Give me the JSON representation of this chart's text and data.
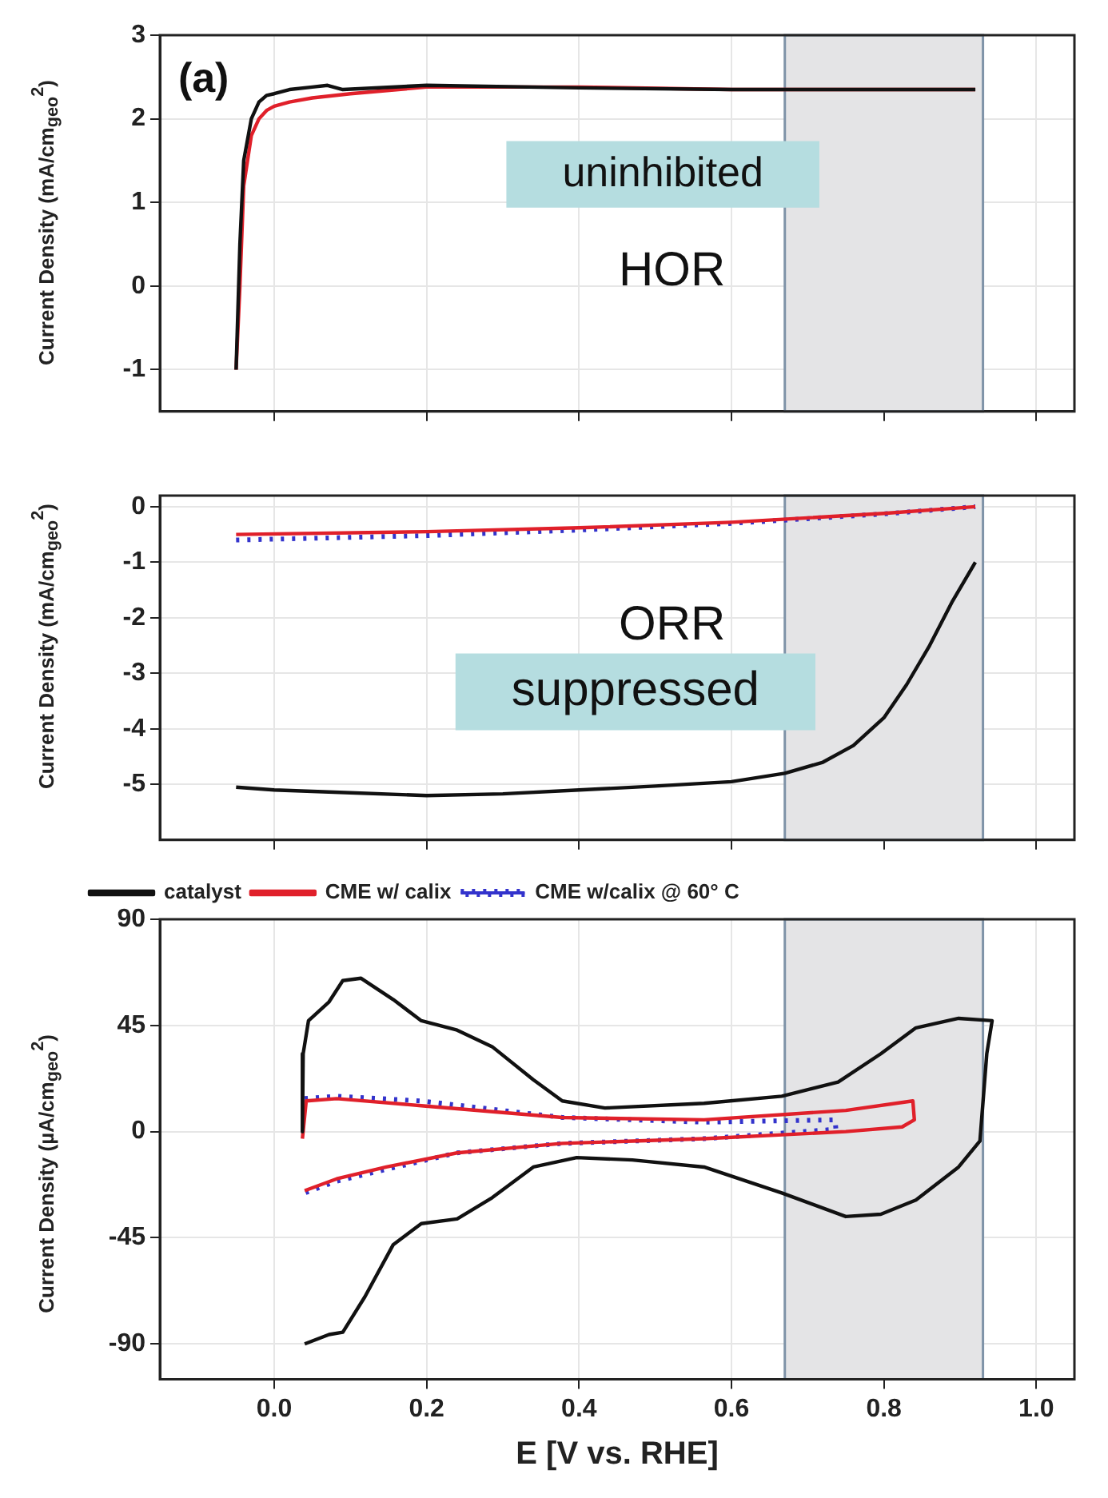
{
  "chart_data": [
    {
      "type": "line",
      "ylabel": "Current Density (mA/cm$_{geo}$$^{2}$)",
      "xlim": [
        -0.15,
        1.05
      ],
      "xticks": [
        0,
        0.2,
        0.4,
        0.6,
        0.8,
        1
      ],
      "ylim": [
        -1.5,
        3
      ],
      "yticks": [
        -1,
        0,
        1,
        2,
        3
      ],
      "tick_labels": "y",
      "grid": true,
      "bands": [
        {
          "axis": "x",
          "from": 0.67,
          "to": 0.93,
          "color": "#e4e4e6"
        }
      ],
      "annotations": [
        "(a)",
        "uninhibited",
        "HOR"
      ],
      "series": [
        {
          "color": "#111111",
          "x": [
            -0.05,
            -0.045,
            -0.04,
            -0.03,
            -0.02,
            -0.01,
            0,
            0.02,
            0.05,
            0.07,
            0.09,
            0.2,
            0.4,
            0.6,
            0.8,
            0.92
          ],
          "values": [
            -1,
            0.5,
            1.5,
            2.0,
            2.2,
            2.28,
            2.3,
            2.35,
            2.38,
            2.4,
            2.35,
            2.4,
            2.37,
            2.35,
            2.35,
            2.35
          ]
        },
        {
          "color": "#e0202a",
          "x": [
            -0.05,
            -0.045,
            -0.04,
            -0.03,
            -0.02,
            -0.01,
            0,
            0.02,
            0.05,
            0.1,
            0.2,
            0.4,
            0.6,
            0.8,
            0.92
          ],
          "values": [
            -1,
            0,
            1.2,
            1.8,
            2.0,
            2.1,
            2.15,
            2.2,
            2.25,
            2.3,
            2.38,
            2.38,
            2.35,
            2.35,
            2.35
          ]
        }
      ]
    },
    {
      "type": "line",
      "ylabel": "Current Density (mA/cm$_{geo}$$^{2}$)",
      "xlim": [
        -0.15,
        1.05
      ],
      "xticks": [
        0,
        0.2,
        0.4,
        0.6,
        0.8,
        1
      ],
      "ylim": [
        -6,
        0.2
      ],
      "yticks": [
        -5,
        -4,
        -3,
        -2,
        -1,
        0
      ],
      "tick_labels": "y",
      "grid": true,
      "bands": [
        {
          "axis": "x",
          "from": 0.67,
          "to": 0.93,
          "color": "#e4e4e6"
        }
      ],
      "annotations": [
        "ORR",
        "suppressed"
      ],
      "series": [
        {
          "color": "#111111",
          "x": [
            -0.05,
            0,
            0.1,
            0.2,
            0.3,
            0.4,
            0.5,
            0.6,
            0.67,
            0.72,
            0.76,
            0.8,
            0.83,
            0.86,
            0.89,
            0.92
          ],
          "values": [
            -5.05,
            -5.1,
            -5.15,
            -5.2,
            -5.17,
            -5.1,
            -5.03,
            -4.95,
            -4.8,
            -4.6,
            -4.3,
            -3.8,
            -3.2,
            -2.5,
            -1.7,
            -1.0
          ]
        },
        {
          "color": "#e0202a",
          "x": [
            -0.05,
            0.2,
            0.4,
            0.6,
            0.8,
            0.92
          ],
          "values": [
            -0.5,
            -0.45,
            -0.38,
            -0.28,
            -0.12,
            0
          ]
        },
        {
          "color": "#3333cc",
          "line_style": "dotted",
          "x": [
            -0.05,
            0.2,
            0.4,
            0.6,
            0.8,
            0.92
          ],
          "values": [
            -0.6,
            -0.52,
            -0.42,
            -0.3,
            -0.13,
            0
          ]
        }
      ]
    },
    {
      "type": "line",
      "xlabel": "E [V vs. RHE]",
      "ylabel": "Current Density (µA/cm$_{geo}$$^{2}$)",
      "xlim": [
        -0.15,
        1.05
      ],
      "xticks": [
        {
          "value": 0,
          "label": "0.0"
        },
        {
          "value": 0.2,
          "label": "0.2"
        },
        {
          "value": 0.4,
          "label": "0.4"
        },
        {
          "value": 0.6,
          "label": "0.6"
        },
        {
          "value": 0.8,
          "label": "0.8"
        },
        {
          "value": 1,
          "label": "1.0"
        }
      ],
      "ylim": [
        -105,
        90
      ],
      "yticks": [
        -90,
        -45,
        0,
        45,
        90
      ],
      "grid": true,
      "legend": "top left",
      "bands": [
        {
          "axis": "x",
          "from": 0.67,
          "to": 0.93,
          "color": "#e4e4e6"
        }
      ],
      "series": [
        {
          "name": "catalyst",
          "color": "#111111",
          "x": [
            0.04,
            0.072,
            0.09,
            0.119,
            0.156,
            0.193,
            0.24,
            0.286,
            0.34,
            0.397,
            0.47,
            0.564,
            0.666,
            0.75,
            0.796,
            0.842,
            0.898,
            0.926,
            0.935,
            0.942,
            0.898,
            0.842,
            0.796,
            0.74,
            0.666,
            0.564,
            0.434,
            0.378,
            0.34,
            0.286,
            0.24,
            0.193,
            0.156,
            0.114,
            0.09,
            0.072,
            0.045,
            0.038,
            0.037
          ],
          "values": [
            -90,
            -86,
            -85,
            -70,
            -48,
            -39,
            -37,
            -28,
            -15,
            -11,
            -12,
            -15,
            -26,
            -36,
            -35,
            -29,
            -15,
            -4,
            33,
            47,
            48,
            44,
            33,
            21,
            15,
            12,
            10,
            13,
            22,
            36,
            43,
            47,
            56,
            65,
            64,
            55,
            47,
            33,
            0
          ]
        },
        {
          "name": "CME w/ calix",
          "color": "#e0202a",
          "x": [
            0.037,
            0.042,
            0.082,
            0.193,
            0.378,
            0.564,
            0.75,
            0.838,
            0.84,
            0.824,
            0.75,
            0.564,
            0.378,
            0.24,
            0.147,
            0.082,
            0.04
          ],
          "values": [
            -3,
            13,
            14,
            11,
            6,
            5,
            9,
            13,
            5,
            2,
            0,
            -3,
            -5,
            -9,
            -15,
            -20,
            -25
          ]
        },
        {
          "name": "CME w/calix @ 60° C",
          "color": "#3333cc",
          "line_style": "dotted",
          "x": [
            0.04,
            0.082,
            0.193,
            0.378,
            0.564,
            0.736,
            0.737,
            0.564,
            0.378,
            0.24,
            0.147,
            0.082,
            0.04
          ],
          "values": [
            14,
            15,
            13,
            6,
            4,
            5,
            1,
            -3,
            -5,
            -9,
            -16,
            -21,
            -26
          ]
        }
      ]
    }
  ]
}
